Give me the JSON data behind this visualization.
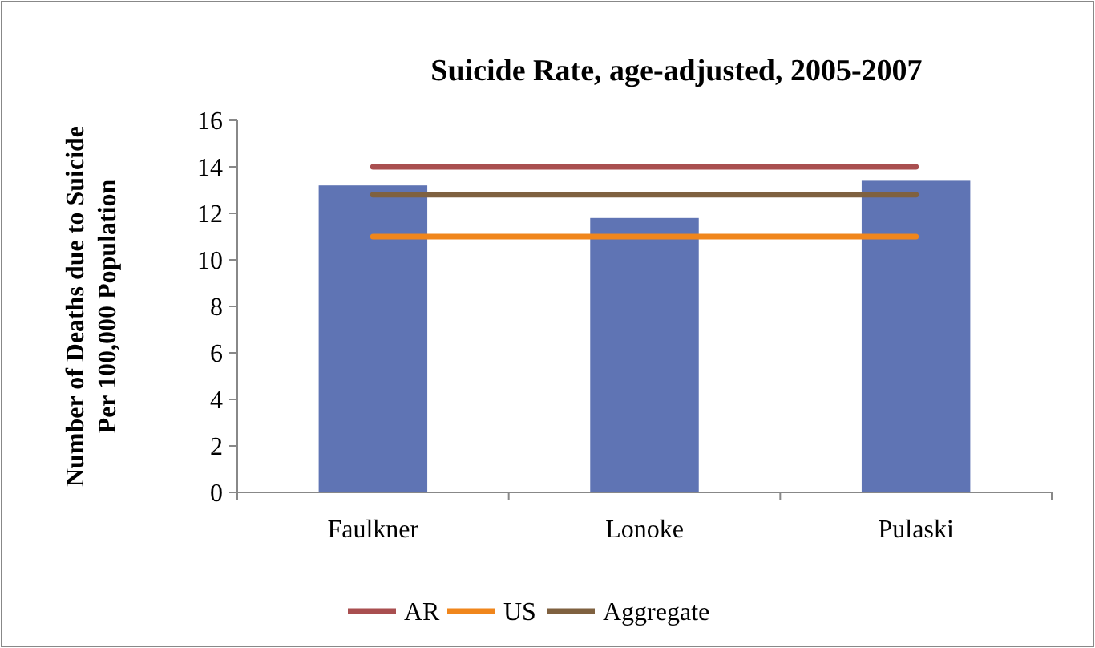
{
  "chart_data": {
    "type": "bar",
    "title": "Suicide Rate, age-adjusted, 2005-2007",
    "ylabel": "Number of Deaths due to Suicide Per 100,000 Population",
    "categories": [
      "Faulkner",
      "Lonoke",
      "Pulaski"
    ],
    "series": [
      {
        "color": "#5f74b4",
        "values": [
          13.2,
          11.8,
          13.4
        ]
      },
      {
        "type": "line",
        "name": "AR",
        "color": "#a94f50",
        "values": [
          14,
          14,
          14
        ]
      },
      {
        "type": "line",
        "name": "US",
        "color": "#f0861c",
        "values": [
          11,
          11,
          11
        ]
      },
      {
        "type": "line",
        "name": "Aggregate",
        "color": "#7f6140",
        "values": [
          12.8,
          12.8,
          12.8
        ]
      }
    ],
    "ylim": [
      0,
      16
    ],
    "yticks": [
      0,
      2,
      4,
      6,
      8,
      10,
      12,
      14,
      16
    ],
    "grid": false,
    "legend": "bottom",
    "marker": "none",
    "line_style": "solid"
  }
}
